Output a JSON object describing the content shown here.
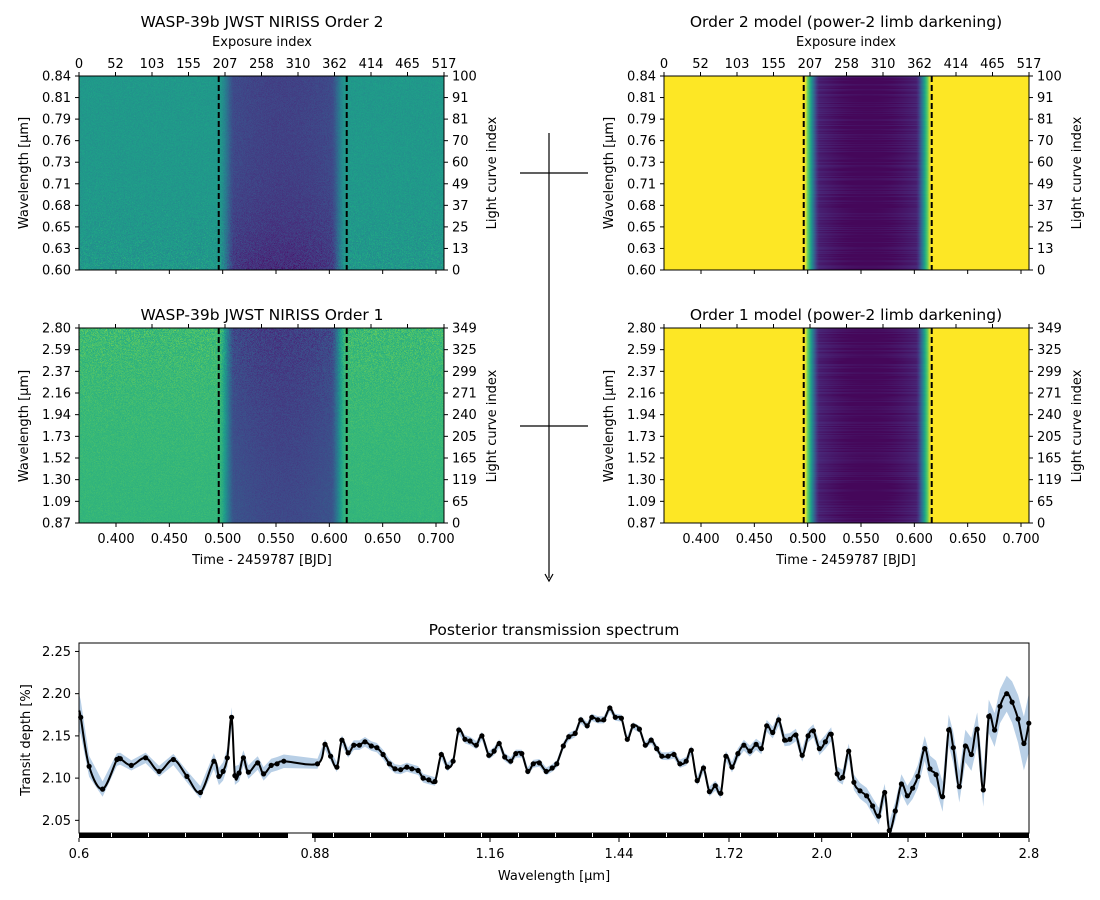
{
  "colors": {
    "band": "#b8cfe6",
    "line": "#000000",
    "dashed": "#000000",
    "colormap": "viridis"
  },
  "chart_data": [
    {
      "type": "heatmap",
      "title": "WASP-39b JWST NIRISS Order 2",
      "top_xlabel": "Exposure index",
      "top_ticks": [
        "0",
        "52",
        "103",
        "155",
        "207",
        "258",
        "310",
        "362",
        "414",
        "465",
        "517"
      ],
      "xlim": [
        0.3653,
        0.7075
      ],
      "ylabel": "Wavelength [μm]",
      "yticks": [
        "0.60",
        "0.63",
        "0.65",
        "0.68",
        "0.71",
        "0.73",
        "0.76",
        "0.79",
        "0.81",
        "0.84"
      ],
      "right_ylabel": "Light curve index",
      "right_yticks": [
        "0",
        "13",
        "25",
        "37",
        "49",
        "60",
        "70",
        "81",
        "91",
        "100"
      ],
      "transit_markers": [
        0.4963,
        0.6163
      ],
      "kind": "observed",
      "out_of_transit_level": 0.6,
      "in_transit_level": 0.22
    },
    {
      "type": "heatmap",
      "title": "Order 2 model (power-2 limb darkening)",
      "top_xlabel": "Exposure index",
      "top_ticks": [
        "0",
        "52",
        "103",
        "155",
        "207",
        "258",
        "310",
        "362",
        "414",
        "465",
        "517"
      ],
      "xlim": [
        0.3653,
        0.7075
      ],
      "ylabel": "Wavelength [μm]",
      "yticks": [
        "0.60",
        "0.63",
        "0.65",
        "0.68",
        "0.71",
        "0.73",
        "0.76",
        "0.79",
        "0.81",
        "0.84"
      ],
      "right_ylabel": "Light curve index",
      "right_yticks": [
        "0",
        "13",
        "25",
        "37",
        "49",
        "60",
        "70",
        "81",
        "91",
        "100"
      ],
      "transit_markers": [
        0.4963,
        0.6163
      ],
      "kind": "model",
      "out_of_transit_level": 1.0,
      "in_transit_level": 0.02
    },
    {
      "type": "heatmap",
      "title": "WASP-39b JWST NIRISS Order 1",
      "xlabel": "Time - 2459787 [BJD]",
      "xticks": [
        "0.400",
        "0.450",
        "0.500",
        "0.550",
        "0.600",
        "0.650",
        "0.700"
      ],
      "xlim": [
        0.3653,
        0.7075
      ],
      "ylabel": "Wavelength [μm]",
      "yticks": [
        "0.87",
        "1.09",
        "1.30",
        "1.52",
        "1.73",
        "1.94",
        "2.16",
        "2.37",
        "2.59",
        "2.80"
      ],
      "right_ylabel": "Light curve index",
      "right_yticks": [
        "0",
        "65",
        "119",
        "165",
        "205",
        "240",
        "271",
        "299",
        "325",
        "349"
      ],
      "transit_markers": [
        0.4963,
        0.6163
      ],
      "kind": "observed",
      "out_of_transit_level": 0.74,
      "in_transit_level": 0.25
    },
    {
      "type": "heatmap",
      "title": "Order 1 model (power-2 limb darkening)",
      "xlabel": "Time - 2459787 [BJD]",
      "xticks": [
        "0.400",
        "0.450",
        "0.500",
        "0.550",
        "0.600",
        "0.650",
        "0.700"
      ],
      "xlim": [
        0.3653,
        0.7075
      ],
      "ylabel": "Wavelength [μm]",
      "yticks": [
        "0.87",
        "1.09",
        "1.30",
        "1.52",
        "1.73",
        "1.94",
        "2.16",
        "2.37",
        "2.59",
        "2.80"
      ],
      "right_ylabel": "Light curve index",
      "right_yticks": [
        "0",
        "65",
        "119",
        "165",
        "205",
        "240",
        "271",
        "299",
        "325",
        "349"
      ],
      "transit_markers": [
        0.4963,
        0.6163
      ],
      "kind": "model",
      "out_of_transit_level": 1.0,
      "in_transit_level": 0.02
    },
    {
      "type": "line",
      "title": "Posterior transmission spectrum",
      "xlabel": "Wavelength [μm]",
      "ylabel": "Transit depth [%]",
      "xticks": [
        0.6,
        0.88,
        1.16,
        1.44,
        1.72,
        2.0,
        2.3,
        2.8
      ],
      "xtick_labels": [
        "0.6",
        "0.88",
        "1.16",
        "1.44",
        "1.72",
        "2.0",
        "2.3",
        "2.8"
      ],
      "yticks": [
        2.05,
        2.1,
        2.15,
        2.2,
        2.25
      ],
      "ytick_labels": [
        "2.05",
        "2.10",
        "2.15",
        "2.20",
        "2.25"
      ],
      "xlim": [
        0.6,
        2.8
      ],
      "ylim": [
        2.035,
        2.26
      ],
      "x": [
        0.602,
        0.612,
        0.628,
        0.645,
        0.649,
        0.662,
        0.679,
        0.695,
        0.712,
        0.728,
        0.744,
        0.76,
        0.766,
        0.771,
        0.776,
        0.781,
        0.785,
        0.79,
        0.795,
        0.801,
        0.812,
        0.819,
        0.828,
        0.835,
        0.843,
        0.884,
        0.896,
        0.905,
        0.915,
        0.923,
        0.933,
        0.942,
        0.951,
        0.96,
        0.97,
        0.979,
        0.989,
        0.999,
        1.008,
        1.017,
        1.027,
        1.035,
        1.045,
        1.053,
        1.062,
        1.072,
        1.082,
        1.092,
        1.101,
        1.11,
        1.12,
        1.128,
        1.138,
        1.147,
        1.158,
        1.169,
        1.18,
        1.192,
        1.205,
        1.216,
        1.229,
        1.242,
        1.254,
        1.267,
        1.282,
        1.295,
        1.305,
        1.319,
        1.331,
        1.345,
        1.357,
        1.371,
        1.381,
        1.394,
        1.407,
        1.42,
        1.432,
        1.446,
        1.461,
        1.476,
        1.492,
        1.507,
        1.522,
        1.536,
        1.549,
        1.565,
        1.58,
        1.595,
        1.611,
        1.624,
        1.639,
        1.655,
        1.67,
        1.685,
        1.699,
        1.712,
        1.729,
        1.747,
        1.765,
        1.783,
        1.802,
        1.818,
        1.834,
        1.852,
        1.87,
        1.888,
        1.904,
        1.922,
        1.941,
        1.959,
        1.975,
        1.993,
        2.013,
        2.033,
        2.054,
        2.073,
        2.094,
        2.112,
        2.133,
        2.156,
        2.177,
        2.198,
        2.219,
        2.235,
        2.256,
        2.277,
        2.298,
        2.319,
        2.341,
        2.369,
        2.391,
        2.416,
        2.443,
        2.468,
        2.487,
        2.512,
        2.537,
        2.562,
        2.586,
        2.611,
        2.634,
        2.658,
        2.68,
        2.708,
        2.73,
        2.755,
        2.779,
        2.799
      ],
      "y": [
        2.172,
        2.114,
        2.087,
        2.122,
        2.123,
        2.115,
        2.124,
        2.108,
        2.122,
        2.102,
        2.083,
        2.12,
        2.102,
        2.108,
        2.124,
        2.172,
        2.103,
        2.106,
        2.124,
        2.107,
        2.118,
        2.105,
        2.115,
        2.117,
        2.12,
        2.117,
        2.14,
        2.126,
        2.113,
        2.145,
        2.13,
        2.139,
        2.139,
        2.143,
        2.138,
        2.136,
        2.128,
        2.117,
        2.111,
        2.11,
        2.113,
        2.111,
        2.109,
        2.1,
        2.098,
        2.096,
        2.128,
        2.113,
        2.12,
        2.157,
        2.146,
        2.144,
        2.139,
        2.15,
        2.127,
        2.132,
        2.141,
        2.125,
        2.12,
        2.129,
        2.129,
        2.108,
        2.117,
        2.118,
        2.108,
        2.112,
        2.117,
        2.138,
        2.149,
        2.153,
        2.169,
        2.162,
        2.172,
        2.169,
        2.169,
        2.183,
        2.172,
        2.171,
        2.146,
        2.162,
        2.158,
        2.139,
        2.145,
        2.135,
        2.126,
        2.126,
        2.128,
        2.117,
        2.12,
        2.133,
        2.097,
        2.112,
        2.084,
        2.091,
        2.082,
        2.126,
        2.113,
        2.129,
        2.139,
        2.132,
        2.14,
        2.135,
        2.162,
        2.154,
        2.169,
        2.145,
        2.146,
        2.151,
        2.127,
        2.15,
        2.156,
        2.135,
        2.143,
        2.152,
        2.105,
        2.101,
        2.132,
        2.095,
        2.085,
        2.079,
        2.067,
        2.055,
        2.083,
        2.038,
        2.061,
        2.093,
        2.079,
        2.088,
        2.102,
        2.135,
        2.111,
        2.104,
        2.078,
        2.157,
        2.136,
        2.09,
        2.138,
        2.128,
        2.158,
        2.086,
        2.173,
        2.157,
        2.185,
        2.2,
        2.19,
        2.17,
        2.141,
        2.165
      ],
      "uncertainty": [
        [
          0.6,
          0.022
        ],
        [
          0.615,
          0.01
        ],
        [
          0.63,
          0.009
        ],
        [
          0.66,
          0.006
        ],
        [
          0.74,
          0.007
        ],
        [
          0.78,
          0.012
        ],
        [
          0.8,
          0.008
        ],
        [
          0.843,
          0.008
        ],
        [
          0.865,
          0.016
        ],
        [
          0.884,
          0.006
        ],
        [
          1.1,
          0.005
        ],
        [
          1.5,
          0.004
        ],
        [
          1.7,
          0.006
        ],
        [
          2.0,
          0.008
        ],
        [
          2.2,
          0.01
        ],
        [
          2.3,
          0.012
        ],
        [
          2.45,
          0.018
        ],
        [
          2.6,
          0.02
        ],
        [
          2.7,
          0.02
        ],
        [
          2.8,
          0.035
        ]
      ],
      "grid": false
    }
  ]
}
